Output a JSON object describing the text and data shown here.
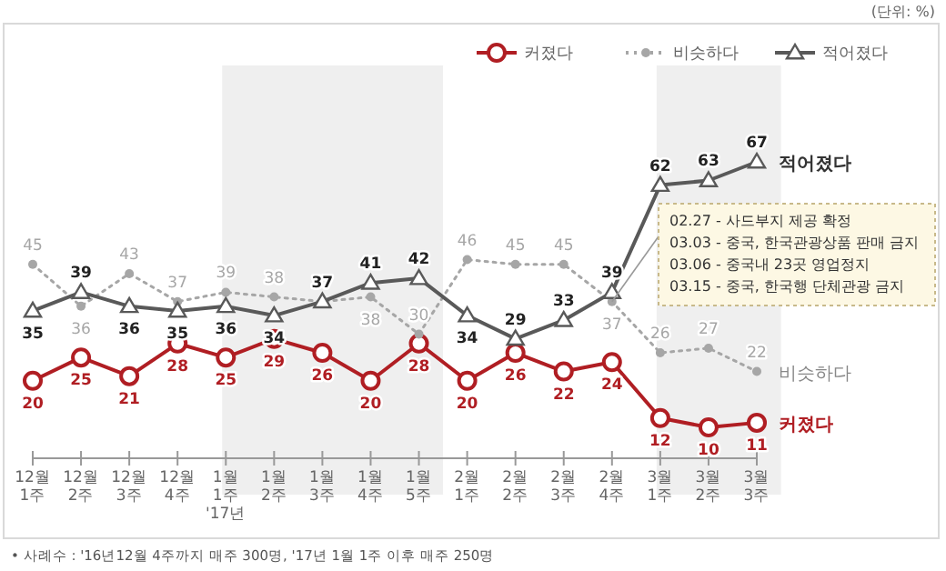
{
  "chart_data": {
    "type": "line",
    "categories": [
      "12월\n1주",
      "12월\n2주",
      "12월\n3주",
      "12월\n4주",
      "1월\n1주\n'17년",
      "1월\n2주",
      "1월\n3주",
      "1월\n4주",
      "1월\n5주",
      "2월\n1주",
      "2월\n2주",
      "2월\n3주",
      "2월\n4주",
      "3월\n1주",
      "3월\n2주",
      "3월\n3주"
    ],
    "series": [
      {
        "name": "커졌다",
        "color": "#b01e23",
        "marker": "circle",
        "line_style": "solid",
        "values": [
          20,
          25,
          21,
          28,
          25,
          29,
          26,
          20,
          28,
          20,
          26,
          22,
          24,
          12,
          10,
          11
        ]
      },
      {
        "name": "비슷하다",
        "color": "#a6a6a6",
        "marker": "circle",
        "line_style": "dotted",
        "values": [
          45,
          36,
          43,
          37,
          39,
          38,
          37,
          38,
          30,
          46,
          45,
          45,
          37,
          26,
          27,
          22
        ]
      },
      {
        "name": "적어졌다",
        "color": "#595959",
        "marker": "triangle",
        "line_style": "solid",
        "values": [
          35,
          39,
          36,
          35,
          36,
          34,
          37,
          41,
          42,
          34,
          29,
          33,
          39,
          62,
          63,
          67
        ]
      }
    ],
    "bands": [
      {
        "axis": "x",
        "from": "1월\n1주\n'17년",
        "to": "1월\n5주",
        "color": "#efefef"
      },
      {
        "axis": "x",
        "from": "3월\n1주",
        "to": "3월\n3주",
        "color": "#efefef"
      }
    ],
    "annotations": [
      "(단위: %)",
      "02.27 - 사드부지 제공 확정",
      "03.03 - 중국, 한국관광상품 판매 금지",
      "03.06 - 중국내 23곳 영업정지",
      "03.15 - 중국, 한국행 단체관광 금지",
      "• 사례수 : '16년12월 4주까지 매주 300명, '17년 1월 1주 이후 매주 250명"
    ],
    "data_labels": true,
    "legend": "top right"
  }
}
